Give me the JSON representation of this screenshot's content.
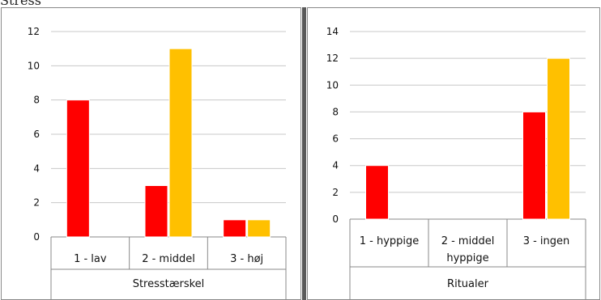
{
  "header_text": "Stress",
  "colors": {
    "red": "#ff0000",
    "orange": "#ffc000",
    "grid": "#c8c8c8",
    "axis": "#888888"
  },
  "chart_data": [
    {
      "type": "bar",
      "categories": [
        [
          "1 - lav"
        ],
        [
          "2 - middel"
        ],
        [
          "3 - høj"
        ]
      ],
      "series": [
        {
          "color": "#ff0000",
          "values": [
            8,
            3,
            1
          ]
        },
        {
          "color": "#ffc000",
          "values": [
            null,
            11,
            1
          ]
        }
      ],
      "xlabel": "Stresstærskel",
      "ylim": [
        0,
        12
      ],
      "yticks": [
        0,
        2,
        4,
        6,
        8,
        10,
        12
      ],
      "grid": true
    },
    {
      "type": "bar",
      "categories": [
        [
          "1 - hyppige"
        ],
        [
          "2 - middel",
          "hyppige"
        ],
        [
          "3 - ingen"
        ]
      ],
      "series": [
        {
          "color": "#ff0000",
          "values": [
            4,
            null,
            8
          ]
        },
        {
          "color": "#ffc000",
          "values": [
            null,
            null,
            12
          ]
        }
      ],
      "xlabel": "Ritualer",
      "ylim": [
        0,
        14
      ],
      "yticks": [
        0,
        2,
        4,
        6,
        8,
        10,
        12,
        14
      ],
      "grid": true
    }
  ]
}
